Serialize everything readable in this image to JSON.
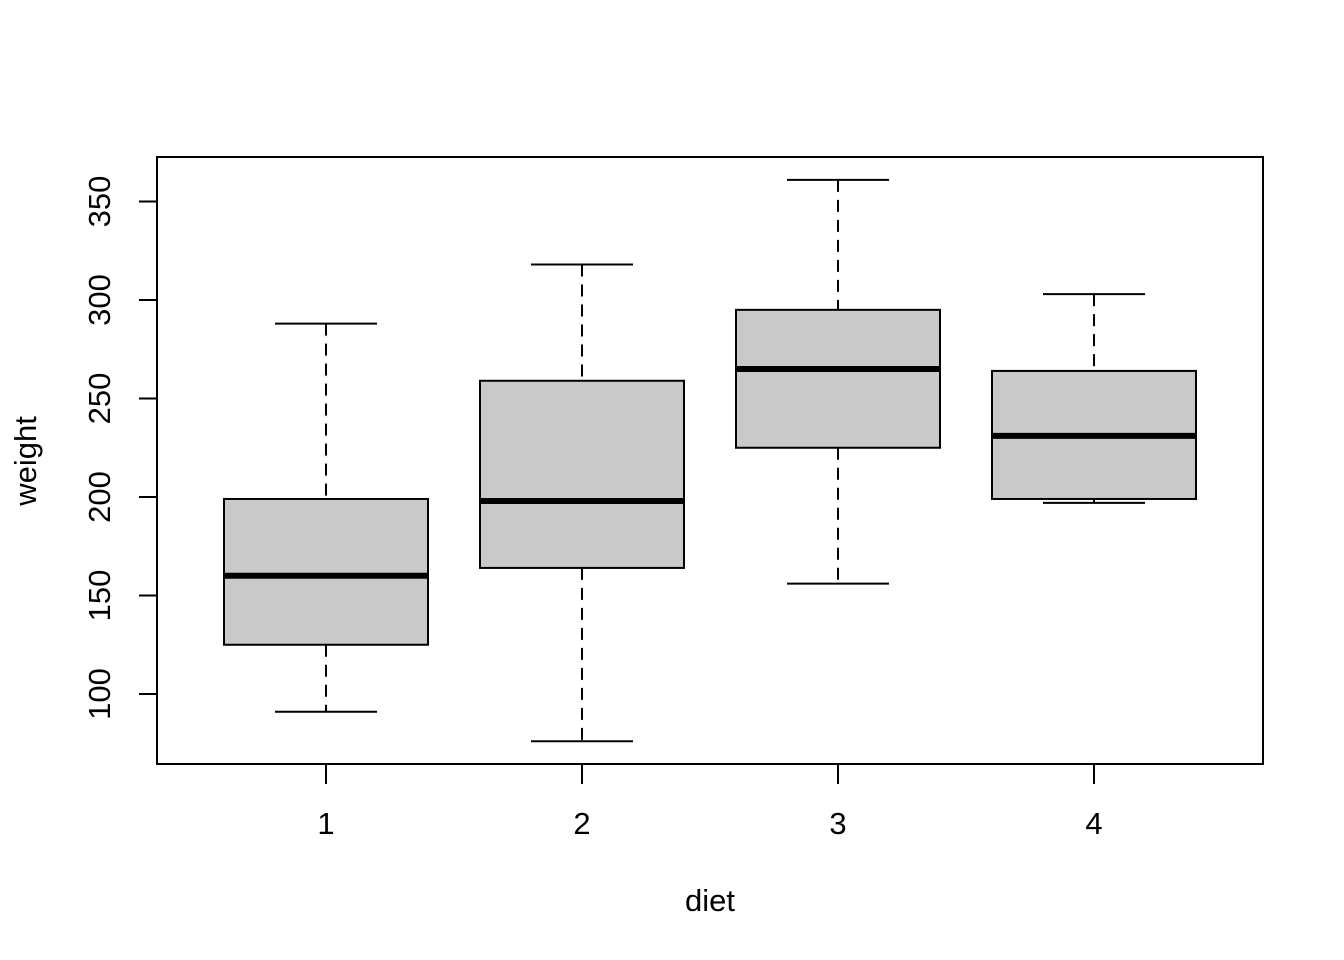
{
  "chart_data": {
    "type": "boxplot",
    "title": "",
    "xlabel": "diet",
    "ylabel": "weight",
    "categories": [
      "1",
      "2",
      "3",
      "4"
    ],
    "ylim": [
      65,
      370
    ],
    "y_ticks": [
      100,
      150,
      200,
      250,
      300,
      350
    ],
    "grid": false,
    "box_fill": "#c9c9c9",
    "boxes": [
      {
        "category": "1",
        "min": 91,
        "q1": 125,
        "median": 160,
        "q3": 199,
        "max": 288
      },
      {
        "category": "2",
        "min": 76,
        "q1": 164,
        "median": 198,
        "q3": 259,
        "max": 318
      },
      {
        "category": "3",
        "min": 156,
        "q1": 225,
        "median": 265,
        "q3": 295,
        "max": 361
      },
      {
        "category": "4",
        "min": 197,
        "q1": 199,
        "median": 231,
        "q3": 264,
        "max": 303
      }
    ]
  }
}
